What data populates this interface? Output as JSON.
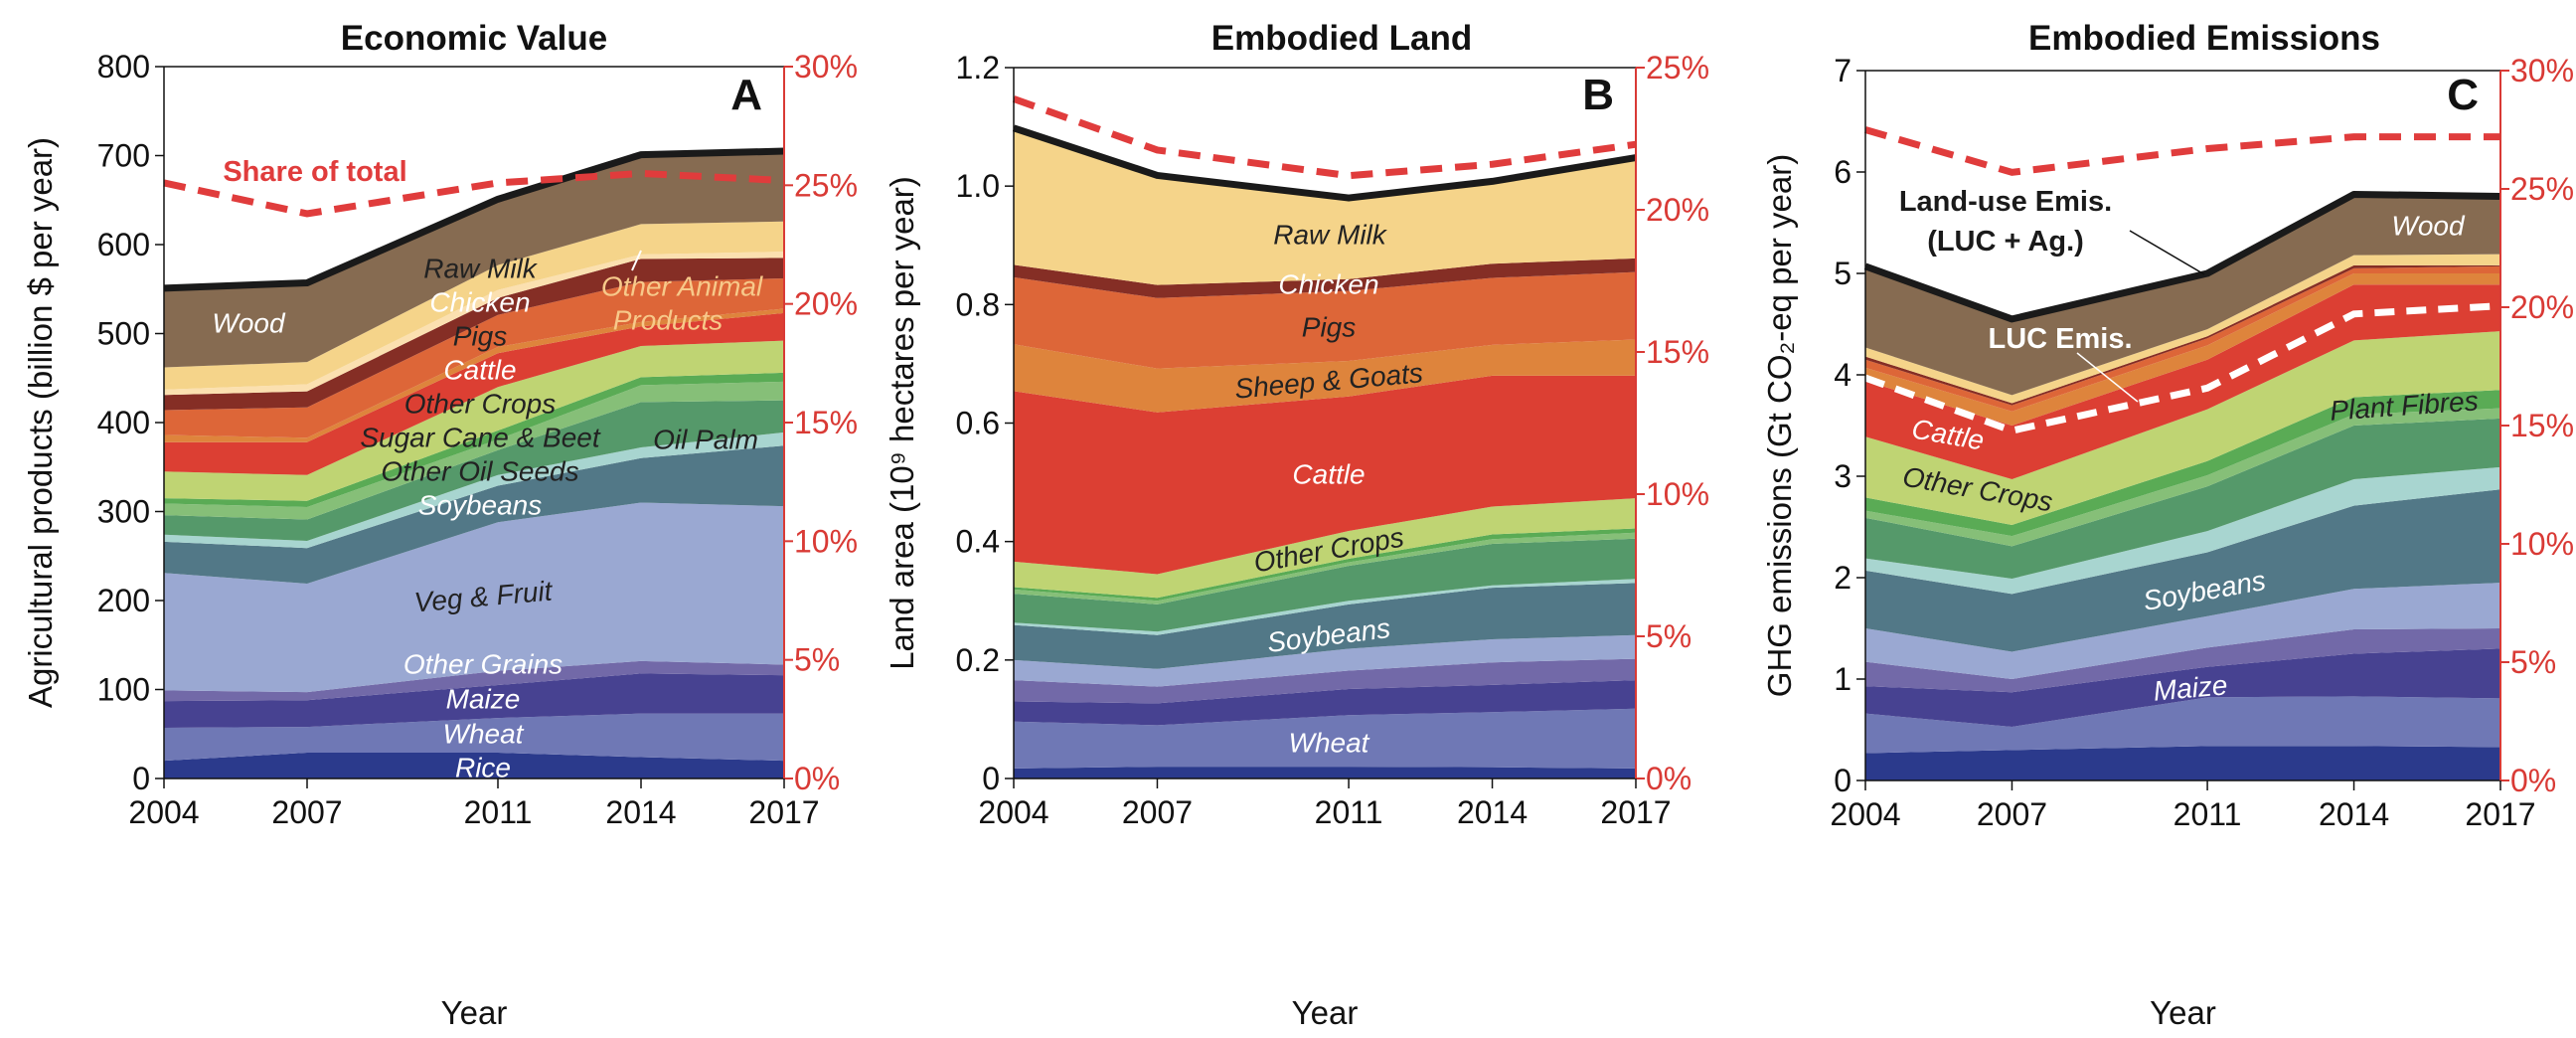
{
  "chart_data": [
    {
      "type": "area",
      "stacked": true,
      "title": "Economic Value",
      "panel_label": "A",
      "xlabel": "Year",
      "ylabel": "Agricultural products (billion $ per year)",
      "x": [
        2004,
        2007,
        2011,
        2014,
        2017
      ],
      "ylim": [
        0,
        800
      ],
      "yticks": [
        0,
        100,
        200,
        300,
        400,
        500,
        600,
        700,
        800
      ],
      "y2lim": [
        0,
        30
      ],
      "y2ticks": [
        "0%",
        "5%",
        "10%",
        "15%",
        "20%",
        "25%",
        "30%"
      ],
      "grid": false,
      "series": [
        {
          "name": "Rice",
          "color": "#2b3a8c",
          "values": [
            20,
            29,
            29,
            24,
            20
          ]
        },
        {
          "name": "Wheat",
          "color": "#6f78b5",
          "values": [
            37,
            29,
            39,
            49,
            53
          ]
        },
        {
          "name": "Maize",
          "color": "#474291",
          "values": [
            30,
            30,
            37,
            45,
            43
          ]
        },
        {
          "name": "Other Grains",
          "color": "#7269a8",
          "values": [
            12,
            9,
            16,
            14,
            12
          ]
        },
        {
          "name": "Veg & Fruit",
          "color": "#9aa8d2",
          "values": [
            132,
            122,
            167,
            178,
            178
          ]
        },
        {
          "name": "Soybeans",
          "color": "#527887",
          "values": [
            35,
            40,
            41,
            50,
            68
          ]
        },
        {
          "name": "Oil Palm",
          "color": "#a8d5d0",
          "values": [
            8,
            8,
            12,
            12,
            15
          ]
        },
        {
          "name": "Other Oil Seeds",
          "color": "#55996a",
          "values": [
            22,
            24,
            28,
            51,
            36
          ]
        },
        {
          "name": "Sugar Cane & Beet",
          "color": "#86bf78",
          "values": [
            13,
            14,
            12,
            19,
            21
          ]
        },
        {
          "name": "Plant Fibres",
          "color": "#5aab55",
          "values": [
            6,
            7,
            10,
            9,
            10
          ]
        },
        {
          "name": "Other Crops",
          "color": "#bfd473",
          "values": [
            30,
            29,
            49,
            35,
            36
          ]
        },
        {
          "name": "Cattle",
          "color": "#dc3f33",
          "values": [
            33,
            37,
            38,
            22,
            31
          ]
        },
        {
          "name": "Sheep & Goats",
          "color": "#de843c",
          "values": [
            8,
            5,
            7,
            5,
            5
          ]
        },
        {
          "name": "Pigs",
          "color": "#dd6638",
          "values": [
            28,
            34,
            36,
            45,
            34
          ]
        },
        {
          "name": "Chicken",
          "color": "#852e25",
          "values": [
            17,
            18,
            19,
            26,
            23
          ]
        },
        {
          "name": "Other Animal Products",
          "color": "#fbe0b0",
          "values": [
            6,
            8,
            9,
            5,
            7
          ]
        },
        {
          "name": "Raw Milk",
          "color": "#f5d48a",
          "values": [
            25,
            25,
            28,
            34,
            34
          ]
        },
        {
          "name": "Wood",
          "color": "#866b51",
          "values": [
            89,
            89,
            74,
            78,
            79
          ]
        }
      ],
      "share_of_total": {
        "label": "Share of total",
        "color": "#e03c3c",
        "values": [
          25.1,
          23.8,
          25.1,
          25.5,
          25.2
        ]
      },
      "annotations": {
        "other_animal_line1": "Other Animal",
        "other_animal_line2": "Products"
      }
    },
    {
      "type": "area",
      "stacked": true,
      "title": "Embodied Land",
      "panel_label": "B",
      "xlabel": "Year",
      "ylabel": "Land area (10⁹ hectares per year)",
      "x": [
        2004,
        2007,
        2011,
        2014,
        2017
      ],
      "ylim": [
        0,
        1.2
      ],
      "yticks": [
        "0",
        "0.2",
        "0.4",
        "0.6",
        "0.8",
        "1.0",
        "1.2"
      ],
      "y2lim": [
        0,
        25
      ],
      "y2ticks": [
        "0%",
        "5%",
        "10%",
        "15%",
        "20%",
        "25%"
      ],
      "grid": false,
      "series": [
        {
          "name": "Rice",
          "color": "#2b3a8c",
          "values": [
            0.017,
            0.02,
            0.02,
            0.019,
            0.017
          ]
        },
        {
          "name": "Wheat",
          "color": "#6f78b5",
          "values": [
            0.079,
            0.07,
            0.087,
            0.093,
            0.101
          ]
        },
        {
          "name": "Maize",
          "color": "#474291",
          "values": [
            0.034,
            0.037,
            0.044,
            0.046,
            0.048
          ]
        },
        {
          "name": "Other Grains",
          "color": "#7269a8",
          "values": [
            0.036,
            0.028,
            0.031,
            0.038,
            0.036
          ]
        },
        {
          "name": "Veg & Fruit",
          "color": "#9aa8d2",
          "values": [
            0.034,
            0.03,
            0.037,
            0.039,
            0.04
          ]
        },
        {
          "name": "Soybeans",
          "color": "#527887",
          "values": [
            0.059,
            0.057,
            0.075,
            0.087,
            0.088
          ]
        },
        {
          "name": "Oil Palm",
          "color": "#a8d5d0",
          "values": [
            0.004,
            0.006,
            0.006,
            0.004,
            0.007
          ]
        },
        {
          "name": "Other Oil Seeds",
          "color": "#55996a",
          "values": [
            0.049,
            0.046,
            0.059,
            0.07,
            0.068
          ]
        },
        {
          "name": "Sugar Cane & Beet",
          "color": "#86bf78",
          "values": [
            0.007,
            0.006,
            0.006,
            0.008,
            0.01
          ]
        },
        {
          "name": "Plant Fibres",
          "color": "#5aab55",
          "values": [
            0.004,
            0.005,
            0.006,
            0.008,
            0.007
          ]
        },
        {
          "name": "Other Crops",
          "color": "#bfd473",
          "values": [
            0.043,
            0.04,
            0.047,
            0.047,
            0.051
          ]
        },
        {
          "name": "Cattle",
          "color": "#dc3f33",
          "values": [
            0.288,
            0.273,
            0.227,
            0.221,
            0.207
          ]
        },
        {
          "name": "Sheep & Goats",
          "color": "#de843c",
          "values": [
            0.079,
            0.074,
            0.06,
            0.052,
            0.061
          ]
        },
        {
          "name": "Pigs",
          "color": "#dd6638",
          "values": [
            0.113,
            0.119,
            0.118,
            0.113,
            0.114
          ]
        },
        {
          "name": "Chicken",
          "color": "#852e25",
          "values": [
            0.021,
            0.022,
            0.02,
            0.024,
            0.023
          ]
        },
        {
          "name": "Raw Milk",
          "color": "#f5d48a",
          "values": [
            0.231,
            0.185,
            0.137,
            0.139,
            0.17
          ]
        }
      ],
      "share_of_total": {
        "color": "#e03c3c",
        "values": [
          23.9,
          22.1,
          21.2,
          21.6,
          22.3
        ]
      }
    },
    {
      "type": "area",
      "stacked": true,
      "title": "Embodied Emissions",
      "panel_label": "C",
      "xlabel": "Year",
      "ylabel": "GHG emissions (Gt CO₂-eq per year)",
      "x": [
        2004,
        2007,
        2011,
        2014,
        2017
      ],
      "ylim": [
        0,
        7
      ],
      "yticks": [
        "0",
        "1",
        "2",
        "3",
        "4",
        "5",
        "6",
        "7"
      ],
      "y2lim": [
        0,
        30
      ],
      "y2ticks": [
        "0%",
        "5%",
        "10%",
        "15%",
        "20%",
        "25%",
        "30%"
      ],
      "grid": false,
      "series": [
        {
          "name": "Rice",
          "color": "#2b3a8c",
          "values": [
            0.27,
            0.3,
            0.34,
            0.34,
            0.33
          ]
        },
        {
          "name": "Wheat",
          "color": "#6f78b5",
          "values": [
            0.39,
            0.23,
            0.48,
            0.49,
            0.48
          ]
        },
        {
          "name": "Maize",
          "color": "#474291",
          "values": [
            0.27,
            0.34,
            0.3,
            0.42,
            0.49
          ]
        },
        {
          "name": "Other Grains",
          "color": "#7269a8",
          "values": [
            0.24,
            0.13,
            0.19,
            0.24,
            0.2
          ]
        },
        {
          "name": "Veg & Fruit",
          "color": "#9aa8d2",
          "values": [
            0.33,
            0.27,
            0.31,
            0.4,
            0.45
          ]
        },
        {
          "name": "Soybeans",
          "color": "#527887",
          "values": [
            0.57,
            0.57,
            0.63,
            0.82,
            0.92
          ]
        },
        {
          "name": "Oil Palm",
          "color": "#a8d5d0",
          "values": [
            0.12,
            0.15,
            0.21,
            0.26,
            0.22
          ]
        },
        {
          "name": "Other Oil Seeds",
          "color": "#55996a",
          "values": [
            0.4,
            0.32,
            0.44,
            0.53,
            0.48
          ]
        },
        {
          "name": "Sugar Cane & Beet",
          "color": "#86bf78",
          "values": [
            0.07,
            0.1,
            0.11,
            0.11,
            0.1
          ]
        },
        {
          "name": "Plant Fibres",
          "color": "#5aab55",
          "values": [
            0.13,
            0.11,
            0.14,
            0.17,
            0.18
          ]
        },
        {
          "name": "Other Crops",
          "color": "#bfd473",
          "values": [
            0.6,
            0.45,
            0.51,
            0.56,
            0.58
          ]
        },
        {
          "name": "Cattle",
          "color": "#dc3f33",
          "values": [
            0.55,
            0.53,
            0.49,
            0.55,
            0.46
          ]
        },
        {
          "name": "Sheep & Goats",
          "color": "#de843c",
          "values": [
            0.13,
            0.14,
            0.14,
            0.11,
            0.11
          ]
        },
        {
          "name": "Pigs",
          "color": "#dd6638",
          "values": [
            0.08,
            0.06,
            0.07,
            0.05,
            0.07
          ]
        },
        {
          "name": "Chicken",
          "color": "#852e25",
          "values": [
            0.03,
            0.02,
            0.02,
            0.03,
            0.01
          ]
        },
        {
          "name": "Raw Milk",
          "color": "#f5d48a",
          "values": [
            0.09,
            0.08,
            0.07,
            0.1,
            0.11
          ]
        },
        {
          "name": "Wood",
          "color": "#866b51",
          "values": [
            0.8,
            0.75,
            0.55,
            0.6,
            0.57
          ]
        }
      ],
      "share_of_total": {
        "color": "#e03c3c",
        "values": [
          27.5,
          25.7,
          26.7,
          27.2,
          27.2
        ]
      },
      "luc_emissions": {
        "label": "LUC Emis.",
        "color": "#ffffff",
        "values": [
          3.97,
          3.45,
          3.87,
          4.6,
          4.68
        ]
      },
      "annotations": {
        "land_use_line1": "Land-use Emis.",
        "land_use_line2": "(LUC + Ag.)"
      }
    }
  ]
}
